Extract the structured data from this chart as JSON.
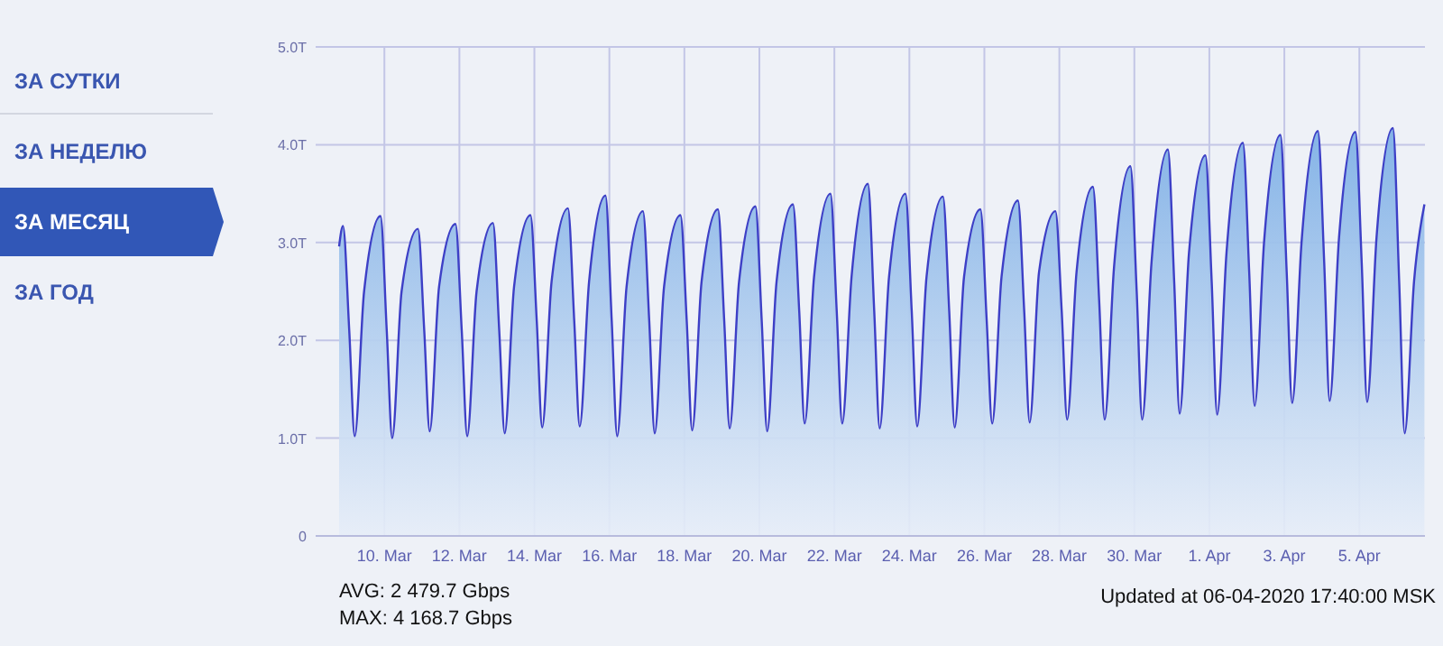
{
  "chart_data": [
    {
      "type": "other",
      "annotations": [
        "ЗА СУТКИ",
        "ЗА НЕДЕЛЮ",
        "ЗА МЕСЯЦ",
        "ЗА ГОД"
      ]
    },
    {
      "type": "area",
      "color": "#3d3fc6",
      "grid": true,
      "ylim": [
        0,
        5
      ],
      "yticks": [
        0,
        {
          "value": 1,
          "label": "1.0T"
        },
        {
          "value": 2,
          "label": "2.0T"
        },
        {
          "value": 3,
          "label": "3.0T"
        },
        {
          "value": 4,
          "label": "4.0T"
        },
        {
          "value": 5,
          "label": "5.0T"
        }
      ],
      "xlim": [
        "2020-03-08T04:00",
        "2020-04-06T18:00"
      ],
      "xticks": [
        {
          "value": "2020-03-10",
          "label": "10. Mar"
        },
        {
          "value": "2020-03-12",
          "label": "12. Mar"
        },
        {
          "value": "2020-03-14",
          "label": "14. Mar"
        },
        {
          "value": "2020-03-16",
          "label": "16. Mar"
        },
        {
          "value": "2020-03-18",
          "label": "18. Mar"
        },
        {
          "value": "2020-03-20",
          "label": "20. Mar"
        },
        {
          "value": "2020-03-22",
          "label": "22. Mar"
        },
        {
          "value": "2020-03-24",
          "label": "24. Mar"
        },
        {
          "value": "2020-03-26",
          "label": "26. Mar"
        },
        {
          "value": "2020-03-28",
          "label": "28. Mar"
        },
        {
          "value": "2020-03-30",
          "label": "30. Mar"
        },
        {
          "value": "2020-04-01",
          "label": "1. Apr"
        },
        {
          "value": "2020-04-03",
          "label": "3. Apr"
        },
        {
          "value": "2020-04-05",
          "label": "5. Apr"
        }
      ],
      "annotations": [
        "AVG: 2 479.7 Gbps",
        "MAX: 4 168.7 Gbps",
        "Updated at 06-04-2020 17:40:00 MSK"
      ],
      "x": [
        "2020-03-08T19:00",
        "2020-03-08T21:30",
        "2020-03-09T01:30",
        "2020-03-09T05:00",
        "2020-03-09T11:00",
        "2020-03-09T21:30",
        "2020-03-10T01:30",
        "2020-03-10T05:00",
        "2020-03-10T11:00",
        "2020-03-10T21:30",
        "2020-03-11T01:30",
        "2020-03-11T05:00",
        "2020-03-11T11:00",
        "2020-03-11T21:30",
        "2020-03-12T01:30",
        "2020-03-12T05:00",
        "2020-03-12T11:00",
        "2020-03-12T21:30",
        "2020-03-13T01:30",
        "2020-03-13T05:00",
        "2020-03-13T11:00",
        "2020-03-13T21:30",
        "2020-03-14T01:30",
        "2020-03-14T05:00",
        "2020-03-14T11:00",
        "2020-03-14T21:30",
        "2020-03-15T01:30",
        "2020-03-15T05:00",
        "2020-03-15T11:00",
        "2020-03-15T21:30",
        "2020-03-16T01:30",
        "2020-03-16T05:00",
        "2020-03-16T11:00",
        "2020-03-16T21:30",
        "2020-03-17T01:30",
        "2020-03-17T05:00",
        "2020-03-17T11:00",
        "2020-03-17T21:30",
        "2020-03-18T01:30",
        "2020-03-18T05:00",
        "2020-03-18T11:00",
        "2020-03-18T21:30",
        "2020-03-19T01:30",
        "2020-03-19T05:00",
        "2020-03-19T11:00",
        "2020-03-19T21:30",
        "2020-03-20T01:30",
        "2020-03-20T05:00",
        "2020-03-20T11:00",
        "2020-03-20T21:30",
        "2020-03-21T01:30",
        "2020-03-21T05:00",
        "2020-03-21T11:00",
        "2020-03-21T21:30",
        "2020-03-22T01:30",
        "2020-03-22T05:00",
        "2020-03-22T11:00",
        "2020-03-22T21:30",
        "2020-03-23T01:30",
        "2020-03-23T05:00",
        "2020-03-23T11:00",
        "2020-03-23T21:30",
        "2020-03-24T01:30",
        "2020-03-24T05:00",
        "2020-03-24T11:00",
        "2020-03-24T21:30",
        "2020-03-25T01:30",
        "2020-03-25T05:00",
        "2020-03-25T11:00",
        "2020-03-25T21:30",
        "2020-03-26T01:30",
        "2020-03-26T05:00",
        "2020-03-26T11:00",
        "2020-03-26T21:30",
        "2020-03-27T01:30",
        "2020-03-27T05:00",
        "2020-03-27T11:00",
        "2020-03-27T21:30",
        "2020-03-28T01:30",
        "2020-03-28T05:00",
        "2020-03-28T11:00",
        "2020-03-28T21:30",
        "2020-03-29T01:30",
        "2020-03-29T05:00",
        "2020-03-29T11:00",
        "2020-03-29T21:30",
        "2020-03-30T01:30",
        "2020-03-30T05:00",
        "2020-03-30T11:00",
        "2020-03-30T21:30",
        "2020-03-31T01:30",
        "2020-03-31T05:00",
        "2020-03-31T11:00",
        "2020-03-31T21:30",
        "2020-04-01T01:30",
        "2020-04-01T05:00",
        "2020-04-01T11:00",
        "2020-04-01T21:30",
        "2020-04-02T01:30",
        "2020-04-02T05:00",
        "2020-04-02T11:00",
        "2020-04-02T21:30",
        "2020-04-03T01:30",
        "2020-04-03T05:00",
        "2020-04-03T11:00",
        "2020-04-03T21:30",
        "2020-04-04T01:30",
        "2020-04-04T05:00",
        "2020-04-04T11:00",
        "2020-04-04T21:30",
        "2020-04-05T01:30",
        "2020-04-05T05:00",
        "2020-04-05T11:00",
        "2020-04-05T21:30",
        "2020-04-06T01:30",
        "2020-04-06T05:00",
        "2020-04-06T11:00",
        "2020-04-06T17:40"
      ],
      "values": [
        2.96,
        3.17,
        2.1,
        1.02,
        2.5,
        3.27,
        2.1,
        1.0,
        2.5,
        3.14,
        2.1,
        1.07,
        2.55,
        3.19,
        2.1,
        1.02,
        2.5,
        3.2,
        2.1,
        1.05,
        2.55,
        3.28,
        2.2,
        1.11,
        2.6,
        3.35,
        2.2,
        1.12,
        2.6,
        3.48,
        2.2,
        1.02,
        2.55,
        3.32,
        2.2,
        1.05,
        2.55,
        3.28,
        2.2,
        1.08,
        2.6,
        3.34,
        2.2,
        1.1,
        2.6,
        3.37,
        2.2,
        1.07,
        2.6,
        3.39,
        2.3,
        1.15,
        2.65,
        3.5,
        2.3,
        1.15,
        2.65,
        3.6,
        2.3,
        1.1,
        2.65,
        3.5,
        2.3,
        1.12,
        2.65,
        3.47,
        2.3,
        1.11,
        2.65,
        3.34,
        2.2,
        1.15,
        2.65,
        3.43,
        2.3,
        1.16,
        2.7,
        3.32,
        2.3,
        1.19,
        2.7,
        3.57,
        2.4,
        1.19,
        2.75,
        3.78,
        2.5,
        1.19,
        2.8,
        3.95,
        2.6,
        1.25,
        2.9,
        3.89,
        2.6,
        1.24,
        2.9,
        4.02,
        2.7,
        1.33,
        3.0,
        4.1,
        2.7,
        1.36,
        3.0,
        4.14,
        2.8,
        1.38,
        3.05,
        4.13,
        2.8,
        1.37,
        3.05,
        4.17,
        2.6,
        1.05,
        2.6,
        3.39
      ]
    }
  ]
}
